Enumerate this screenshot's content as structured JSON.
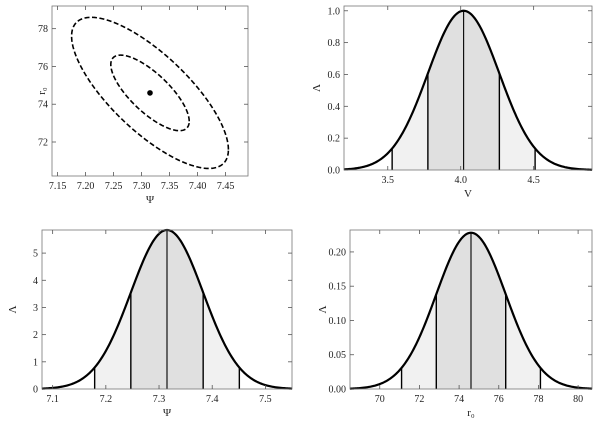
{
  "chart_data": [
    {
      "type": "contour",
      "xlabel": "Ψ",
      "ylabel": "r₀",
      "xlim": [
        7.14,
        7.49
      ],
      "ylim": [
        70.2,
        79.2
      ],
      "xticks": [
        7.15,
        7.2,
        7.25,
        7.3,
        7.35,
        7.4,
        7.45
      ],
      "xtick_labels": [
        "7.15",
        "7.20",
        "7.25",
        "7.30",
        "7.35",
        "7.40",
        "7.45"
      ],
      "yticks": [
        72,
        74,
        76,
        78
      ],
      "ytick_labels": [
        "72",
        "74",
        "76",
        "78"
      ],
      "point": {
        "x": 7.315,
        "y": 74.6
      },
      "contours": [
        {
          "level": "inner",
          "cx": 7.315,
          "cy": 74.6,
          "semi_x": 0.07,
          "semi_y": 2.0,
          "rho": -0.75
        },
        {
          "level": "outer",
          "cx": 7.315,
          "cy": 74.6,
          "semi_x": 0.14,
          "semi_y": 4.0,
          "rho": -0.75
        }
      ],
      "line_style": "dashed"
    },
    {
      "type": "area",
      "xlabel": "V",
      "ylabel": "Λ",
      "xlim": [
        3.2,
        4.9
      ],
      "ylim": [
        0,
        1.03
      ],
      "xticks": [
        3.5,
        4.0,
        4.5
      ],
      "xtick_labels": [
        "3.5",
        "4.0",
        "4.5"
      ],
      "yticks": [
        0,
        0.2,
        0.4,
        0.6,
        0.8,
        1.0
      ],
      "ytick_labels": [
        "0.0",
        "0.2",
        "0.4",
        "0.6",
        "0.8",
        "1.0"
      ],
      "mean": 4.02,
      "sigma": 0.245,
      "peak": 1.0,
      "bands": [
        [
          3.775,
          4.265
        ],
        [
          3.53,
          4.51
        ]
      ]
    },
    {
      "type": "area",
      "xlabel": "Ψ",
      "ylabel": "Λ",
      "xlim": [
        7.08,
        7.55
      ],
      "ylim": [
        0,
        5.85
      ],
      "xticks": [
        7.1,
        7.2,
        7.3,
        7.4,
        7.5
      ],
      "xtick_labels": [
        "7.1",
        "7.2",
        "7.3",
        "7.4",
        "7.5"
      ],
      "yticks": [
        0,
        1,
        2,
        3,
        4,
        5
      ],
      "ytick_labels": [
        "0",
        "1",
        "2",
        "3",
        "4",
        "5"
      ],
      "mean": 7.315,
      "sigma": 0.068,
      "peak": 5.85,
      "bands": [
        [
          7.247,
          7.383
        ],
        [
          7.179,
          7.451
        ]
      ]
    },
    {
      "type": "area",
      "xlabel": "r₀",
      "ylabel": "Λ",
      "xlim": [
        68.5,
        80.7
      ],
      "ylim": [
        0,
        0.232
      ],
      "xticks": [
        70,
        72,
        74,
        76,
        78,
        80
      ],
      "xtick_labels": [
        "70",
        "72",
        "74",
        "76",
        "78",
        "80"
      ],
      "yticks": [
        0,
        0.05,
        0.1,
        0.15,
        0.2
      ],
      "ytick_labels": [
        "0.00",
        "0.05",
        "0.10",
        "0.15",
        "0.20"
      ],
      "mean": 74.6,
      "sigma": 1.75,
      "peak": 0.228,
      "bands": [
        [
          72.85,
          76.35
        ],
        [
          71.1,
          78.1
        ]
      ]
    }
  ]
}
